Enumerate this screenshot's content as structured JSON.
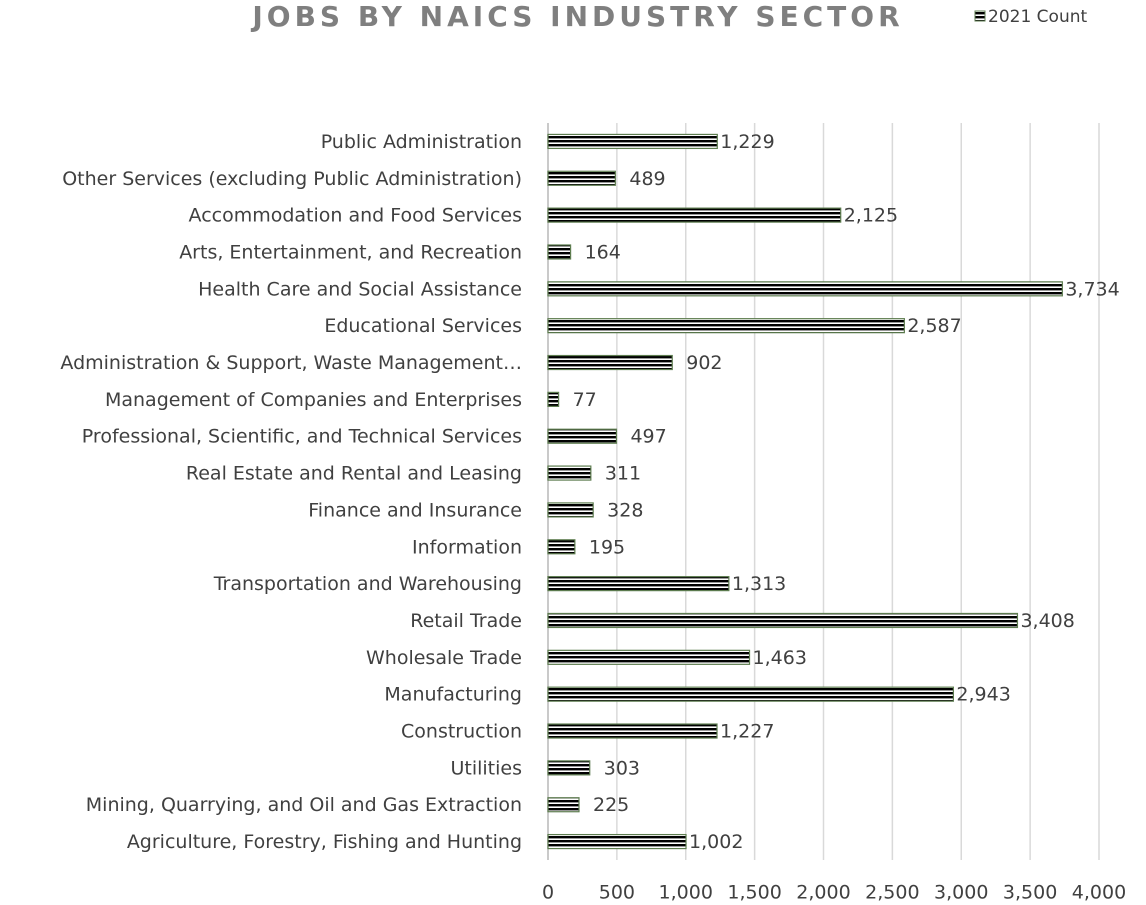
{
  "chart_data": {
    "type": "barh",
    "title": "JOBS BY NAICS INDUSTRY SECTOR",
    "categories": [
      "Public Administration",
      "Other Services (excluding Public Administration)",
      "Accommodation and Food Services",
      "Arts, Entertainment, and Recreation",
      "Health Care and Social Assistance",
      "Educational Services",
      "Administration & Support, Waste Management…",
      "Management of Companies and Enterprises",
      "Professional, Scientific, and Technical Services",
      "Real Estate and Rental and Leasing",
      "Finance and Insurance",
      "Information",
      "Transportation and Warehousing",
      "Retail Trade",
      "Wholesale Trade",
      "Manufacturing",
      "Construction",
      "Utilities",
      "Mining, Quarrying, and Oil and Gas Extraction",
      "Agriculture, Forestry, Fishing and Hunting"
    ],
    "series": [
      {
        "name": "2021 Count",
        "color": "#5e7d50",
        "values": [
          1229,
          489,
          2125,
          164,
          3734,
          2587,
          902,
          77,
          497,
          311,
          328,
          195,
          1313,
          3408,
          1463,
          2943,
          1227,
          303,
          225,
          1002
        ],
        "value_labels": [
          "1,229",
          "489",
          "2,125",
          "164",
          "3,734",
          "2,587",
          "902",
          "77",
          "497",
          "311",
          "328",
          "195",
          "1,313",
          "3,408",
          "1,463",
          "2,943",
          "1,227",
          "303",
          "225",
          "1,002"
        ]
      }
    ],
    "xlim": [
      0,
      4000
    ],
    "xticks": [
      0,
      500,
      {
        "value": 1000,
        "label": "1,000"
      },
      {
        "value": 1500,
        "label": "1,500"
      },
      {
        "value": 2000,
        "label": "2,000"
      },
      {
        "value": 2500,
        "label": "2,500"
      },
      {
        "value": 3000,
        "label": "3,000"
      },
      {
        "value": 3500,
        "label": "3,500"
      },
      {
        "value": 4000,
        "label": "4,000"
      }
    ],
    "grid": true,
    "legend": "top-right"
  }
}
